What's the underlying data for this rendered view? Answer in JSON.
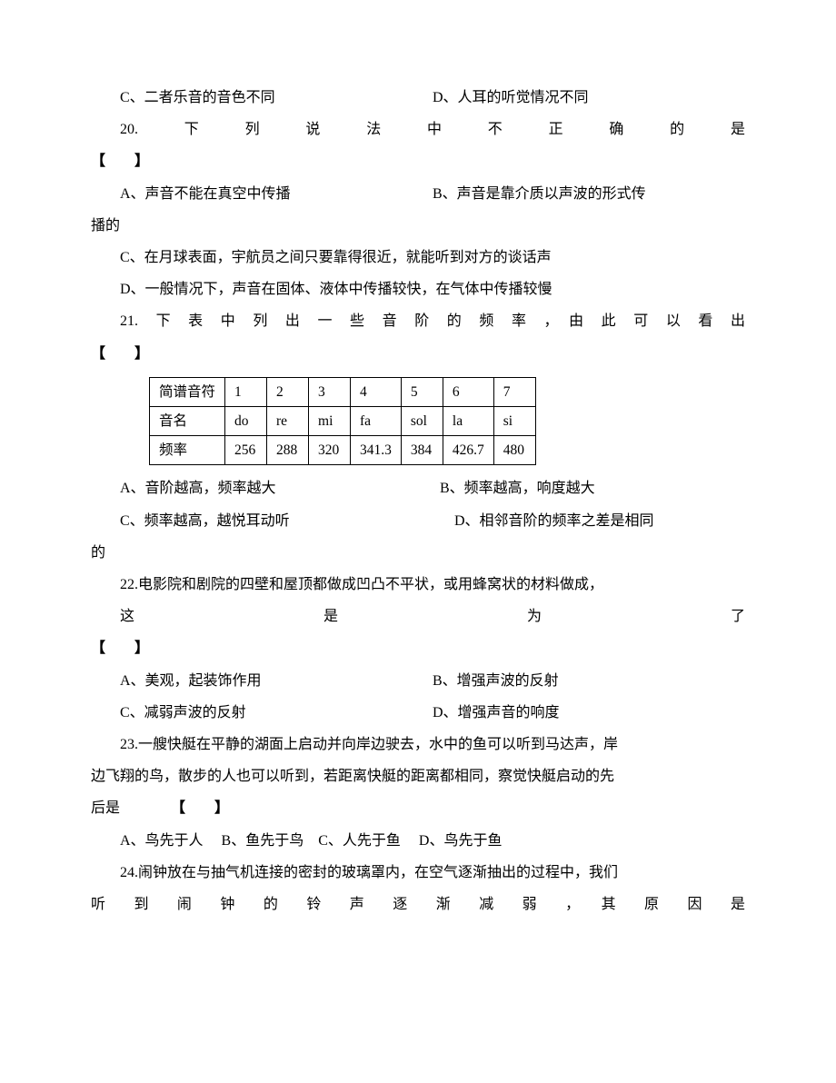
{
  "fontSize": 16,
  "lineHeight": 2.2,
  "textColor": "#000000",
  "backgroundColor": "#ffffff",
  "borderColor": "#000000",
  "q19": {
    "optC": "C、二者乐音的音色不同",
    "optD": "D、人耳的听觉情况不同"
  },
  "q20": {
    "stem": "20.　下　列　说　法　中　不　正　确　的　是",
    "bracket": "【　　】",
    "optA": "A、声音不能在真空中传播",
    "optB_part1": "B、声音是靠介质以声波的形式传",
    "optB_part2": "播的",
    "optC": "C、在月球表面，宇航员之间只要靠得很近，就能听到对方的谈话声",
    "optD": "D、一般情况下，声音在固体、液体中传播较快，在气体中传播较慢"
  },
  "q21": {
    "stem": "21.　下　表　中　列　出　一　些　音　阶　的　频　率　，　由　此　可　以　看　出",
    "bracket": "【　　】",
    "table": {
      "headers": [
        "简谱音符",
        "1",
        "2",
        "3",
        "4",
        "5",
        "6",
        "7"
      ],
      "row2": [
        "音名",
        "do",
        "re",
        "mi",
        "fa",
        "sol",
        "la",
        "si"
      ],
      "row3": [
        "频率",
        "256",
        "288",
        "320",
        "341.3",
        "384",
        "426.7",
        "480"
      ]
    },
    "optA": "A、音阶越高，频率越大",
    "optB": "B、频率越高，响度越大",
    "optC": "C、频率越高，越悦耳动听",
    "optD_part1": "D、相邻音阶的频率之差是相同",
    "optD_part2": "的"
  },
  "q22": {
    "stem1": "22.电影院和剧院的四壁和屋顶都做成凹凸不平状，或用蜂窝状的材料做成，",
    "stem2": "这　　　　　　　　是　　　　　　　　为　　　　　　　　了",
    "bracket": "【　　】",
    "optA": "A、美观，起装饰作用",
    "optB": "B、增强声波的反射",
    "optC": "C、减弱声波的反射",
    "optD": "D、增强声音的响度"
  },
  "q23": {
    "stem1": "23.一艘快艇在平静的湖面上启动并向岸边驶去，水中的鱼可以听到马达声，岸",
    "stem2": "边飞翔的鸟，散步的人也可以听到，若距离快艇的距离都相同，察觉快艇启动的先",
    "stem3_prefix": "后是",
    "bracket": "【　　】",
    "opts": "A、鸟先于人　 B、鱼先于鸟　C、人先于鱼　 D、鸟先于鱼"
  },
  "q24": {
    "stem1": "24.闹钟放在与抽气机连接的密封的玻璃罩内，在空气逐渐抽出的过程中，我们",
    "stem2": "听　到　闹　钟　的　铃　声　逐　渐　减　弱　，　其　原　因　是"
  }
}
